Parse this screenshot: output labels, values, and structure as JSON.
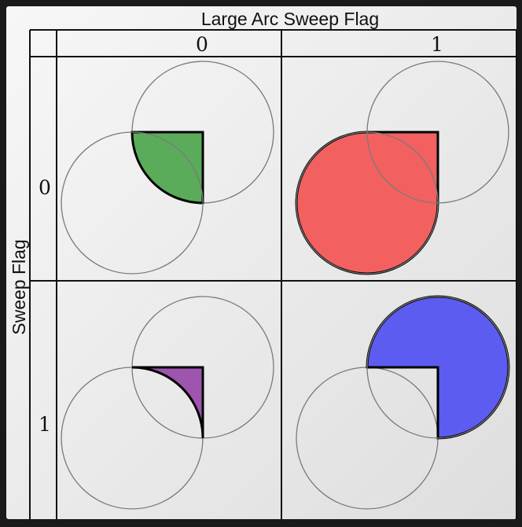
{
  "diagram": {
    "column_header": "Large Arc Sweep Flag",
    "row_header": "Sweep Flag",
    "column_values": [
      "0",
      "1"
    ],
    "row_values": [
      "0",
      "1"
    ],
    "colors": {
      "background": "#1a1a1a",
      "panel": "#ebebeb",
      "grid_line": "#111111",
      "circle_stroke": "#7a7a7a",
      "arc_outline": "#000000"
    },
    "cells": [
      {
        "large_arc_flag": 0,
        "sweep_flag": 0,
        "fill": "#5aac5a",
        "arc": "small"
      },
      {
        "large_arc_flag": 1,
        "sweep_flag": 0,
        "fill": "#f26060",
        "arc": "large"
      },
      {
        "large_arc_flag": 0,
        "sweep_flag": 1,
        "fill": "#9e55ad",
        "arc": "small"
      },
      {
        "large_arc_flag": 1,
        "sweep_flag": 1,
        "fill": "#5c5cf0",
        "arc": "large"
      }
    ]
  }
}
